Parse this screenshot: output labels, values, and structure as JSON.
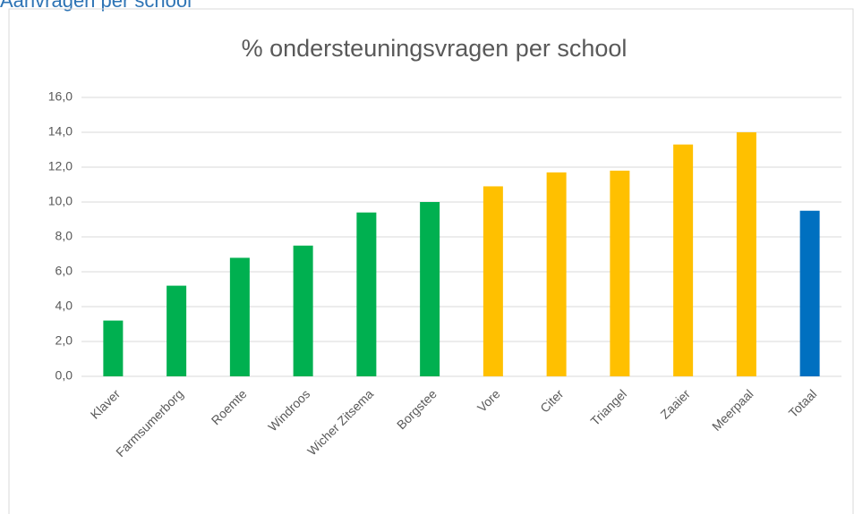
{
  "heading": "Aanvragen per school",
  "chart_data": {
    "type": "bar",
    "title": "% ondersteuningsvragen per school",
    "categories": [
      "Klaver",
      "Farmsumerborg",
      "Roemte",
      "Windroos",
      "Wicher Zitsema",
      "Borgstee",
      "Vore",
      "Citer",
      "Triangel",
      "Zaaier",
      "Meerpaal",
      "Totaal"
    ],
    "values": [
      3.2,
      5.2,
      6.8,
      7.5,
      9.4,
      10.0,
      10.9,
      11.7,
      11.8,
      13.3,
      14.0,
      9.5
    ],
    "colors": [
      "#00b050",
      "#00b050",
      "#00b050",
      "#00b050",
      "#00b050",
      "#00b050",
      "#ffc000",
      "#ffc000",
      "#ffc000",
      "#ffc000",
      "#ffc000",
      "#0070c0"
    ],
    "ylim": [
      0,
      16
    ],
    "yticks": [
      {
        "value": 0,
        "label": "0,0"
      },
      {
        "value": 2,
        "label": "2,0"
      },
      {
        "value": 4,
        "label": "4,0"
      },
      {
        "value": 6,
        "label": "6,0"
      },
      {
        "value": 8,
        "label": "8,0"
      },
      {
        "value": 10,
        "label": "10,0"
      },
      {
        "value": 12,
        "label": "12,0"
      },
      {
        "value": 14,
        "label": "14,0"
      },
      {
        "value": 16,
        "label": "16,0"
      }
    ],
    "grid": true
  }
}
